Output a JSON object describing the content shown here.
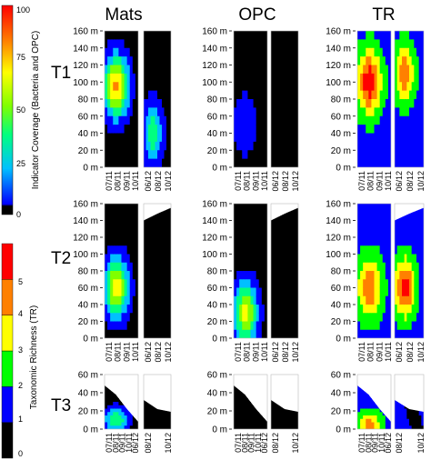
{
  "chart_data": {
    "type": "heatmap",
    "column_titles": [
      "Mats",
      "OPC",
      "TR"
    ],
    "row_labels": [
      "T1",
      "T2",
      "T3"
    ],
    "colorbars": [
      {
        "label": "Indicator Coverage (Bacteria and OPC)",
        "ticks": [
          "0",
          "25",
          "50",
          "75",
          "100"
        ],
        "range": [
          0,
          100
        ],
        "stops": [
          "#000000",
          "#0000ff",
          "#00c0ff",
          "#00ff80",
          "#80ff00",
          "#ffff00",
          "#ff8000",
          "#ff0000"
        ]
      },
      {
        "label": "Taxonomic Richness (TR)",
        "ticks": [
          "0",
          "1",
          "2",
          "3",
          "4",
          "5"
        ],
        "range": [
          0,
          6
        ],
        "stops": [
          "#000000",
          "#0000ff",
          "#00ff00",
          "#ffff00",
          "#ff8000",
          "#ff0000"
        ]
      }
    ],
    "panels_y_ticks": {
      "T1": [
        "0 m",
        "20 m",
        "40 m",
        "60 m",
        "80 m",
        "100 m",
        "120 m",
        "140 m",
        "160 m"
      ],
      "T2": [
        "0 m",
        "20 m",
        "40 m",
        "60 m",
        "80 m",
        "100 m",
        "120 m",
        "140 m",
        "160 m"
      ],
      "T3": [
        "0 m",
        "20 m",
        "40 m",
        "60 m"
      ]
    },
    "y_units": "m",
    "x_ticks_2011": [
      "07/11",
      "08/11",
      "09/11",
      "10/11"
    ],
    "x_ticks_2012": [
      "06/12",
      "08/12",
      "10/12"
    ],
    "x_ticks_2011_T3": [
      "07/11",
      "08/11",
      "09/11",
      "10/11",
      "06/12"
    ],
    "x_ticks_2012_T3": [
      "08/12",
      "10/12"
    ],
    "profiles_2012_top_m": {
      "T1": [
        160,
        160,
        160
      ],
      "T2": [
        140,
        148,
        155
      ],
      "T3": [
        32,
        22,
        19
      ]
    },
    "profiles_2011_top_m": {
      "T1": [
        160,
        160,
        160,
        160
      ],
      "T2": [
        160,
        160,
        160,
        160
      ],
      "T3": [
        48,
        38,
        22,
        8
      ]
    },
    "features": [
      {
        "panel": "T1-Mats",
        "period": "2011",
        "peak_depth_m": 95,
        "peak_value": 85,
        "note": "orange-red core 60–120 m"
      },
      {
        "panel": "T1-Mats",
        "period": "2012",
        "peak_depth_m": 40,
        "peak_value": 45
      },
      {
        "panel": "T1-OPC",
        "period": "2011",
        "peak_depth_m": 50,
        "peak_value": 20
      },
      {
        "panel": "T1-TR",
        "period": "2011",
        "peak_depth_m": 100,
        "peak_value": 4.5
      },
      {
        "panel": "T1-TR",
        "period": "2012",
        "peak_depth_m": 110,
        "peak_value": 3.5
      },
      {
        "panel": "T2-Mats",
        "period": "2011",
        "peak_depth_m": 60,
        "peak_value": 75
      },
      {
        "panel": "T2-OPC",
        "period": "2011",
        "peak_depth_m": 30,
        "peak_value": 70
      },
      {
        "panel": "T2-TR",
        "period": "2011",
        "peak_depth_m": 60,
        "peak_value": 3.5
      },
      {
        "panel": "T2-TR",
        "period": "2012",
        "peak_depth_m": 60,
        "peak_value": 4.5
      },
      {
        "panel": "T3-Mats",
        "period": "2011",
        "peak_depth_m": 10,
        "peak_value": 50
      },
      {
        "panel": "T3-TR",
        "period": "2011",
        "peak_depth_m": 5,
        "peak_value": 3
      }
    ]
  }
}
